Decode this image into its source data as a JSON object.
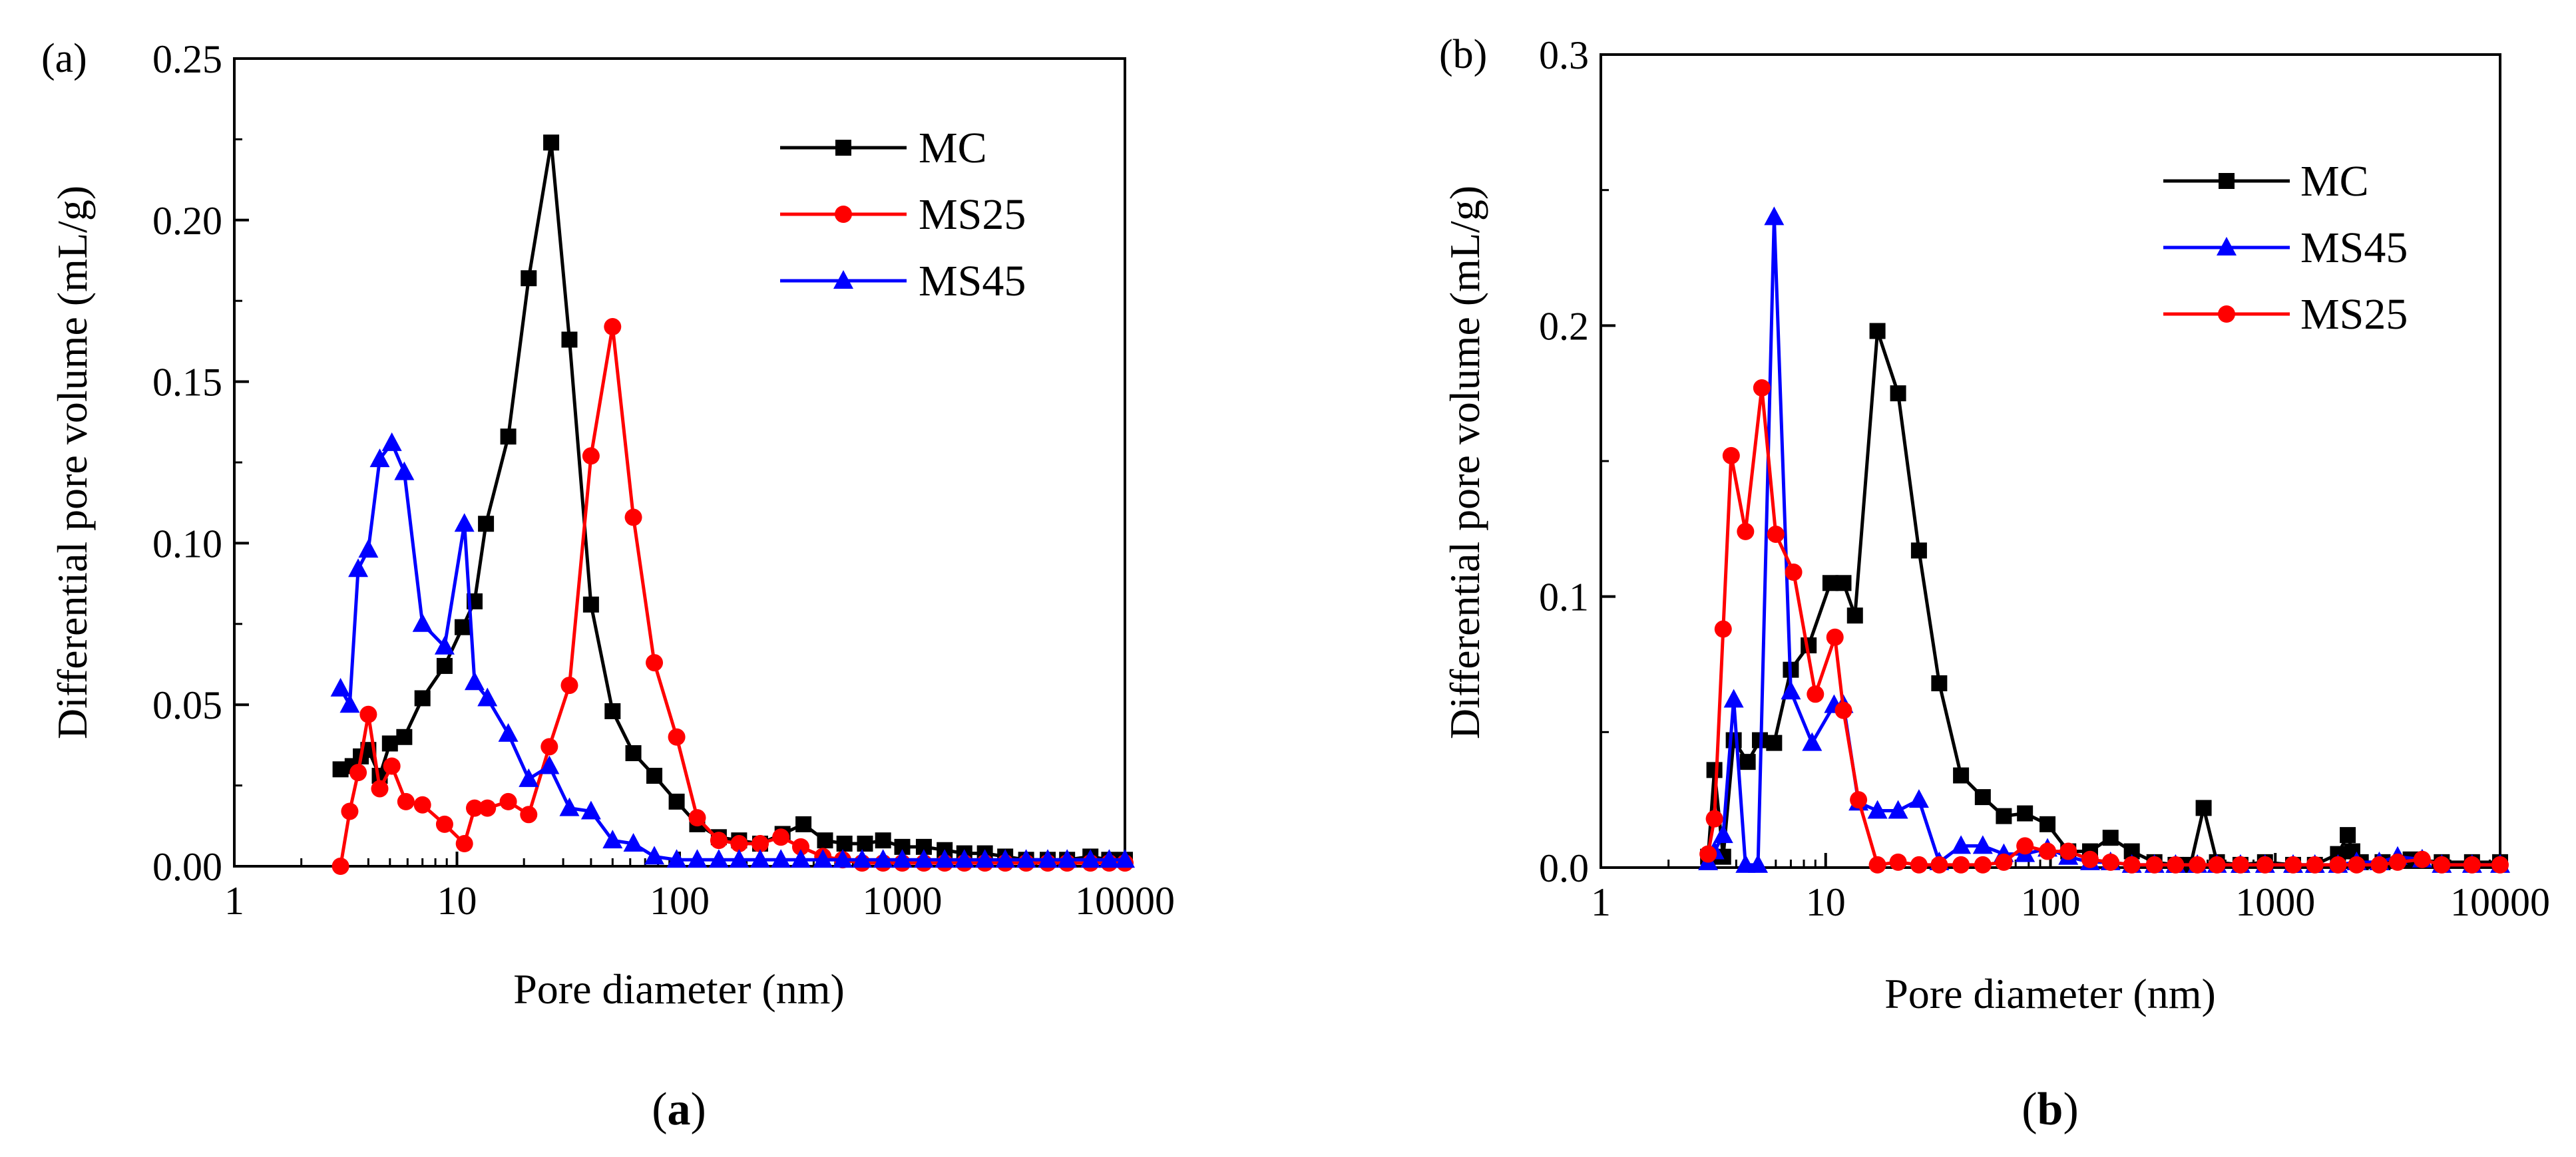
{
  "chart_data": [
    {
      "type": "line",
      "panel_label": "(a)",
      "caption_open": "(",
      "caption_letter": "a",
      "caption_close": ")",
      "xscale": "log",
      "xlim": [
        1,
        10000
      ],
      "ylim": [
        0,
        0.25
      ],
      "xticks": [
        "1",
        "10",
        "100",
        "1000",
        "10000"
      ],
      "yticks": [
        "0.00",
        "0.05",
        "0.10",
        "0.15",
        "0.20",
        "0.25"
      ],
      "xlabel": "Pore diameter (nm)",
      "ylabel": "Differential pore volume (mL/g)",
      "legend_position": "top-right",
      "series": [
        {
          "name": "MC",
          "color": "#000000",
          "marker": "square",
          "x": [
            3,
            3.4,
            3.7,
            4.0,
            4.5,
            5,
            5.8,
            7,
            8.8,
            10.6,
            12,
            13.5,
            17,
            21,
            26.5,
            32,
            40,
            50,
            62,
            77,
            97,
            120,
            150,
            185,
            230,
            290,
            360,
            450,
            550,
            680,
            820,
            1000,
            1250,
            1550,
            1900,
            2350,
            2900,
            3600,
            4500,
            5500,
            7000,
            8500,
            10000
          ],
          "y": [
            0.03,
            0.031,
            0.034,
            0.036,
            0.028,
            0.038,
            0.04,
            0.052,
            0.062,
            0.074,
            0.082,
            0.106,
            0.133,
            0.182,
            0.224,
            0.163,
            0.081,
            0.048,
            0.035,
            0.028,
            0.02,
            0.013,
            0.009,
            0.008,
            0.007,
            0.01,
            0.013,
            0.008,
            0.007,
            0.007,
            0.008,
            0.006,
            0.006,
            0.005,
            0.004,
            0.004,
            0.003,
            0.002,
            0.002,
            0.002,
            0.003,
            0.002,
            0.002
          ]
        },
        {
          "name": "MS25",
          "color": "#ff0000",
          "marker": "circle",
          "x": [
            3,
            3.3,
            3.6,
            4.0,
            4.5,
            5.1,
            5.9,
            7,
            8.8,
            10.8,
            12,
            13.7,
            17,
            21,
            26,
            32,
            40,
            50,
            62,
            77,
            97,
            120,
            150,
            185,
            230,
            285,
            350,
            440,
            540,
            660,
            820,
            1000,
            1250,
            1550,
            1900,
            2350,
            2900,
            3600,
            4500,
            5500,
            7000,
            8500,
            10000
          ],
          "y": [
            0.0,
            0.017,
            0.029,
            0.047,
            0.024,
            0.031,
            0.02,
            0.019,
            0.013,
            0.007,
            0.018,
            0.018,
            0.02,
            0.016,
            0.037,
            0.056,
            0.127,
            0.167,
            0.108,
            0.063,
            0.04,
            0.015,
            0.008,
            0.007,
            0.007,
            0.009,
            0.006,
            0.003,
            0.002,
            0.001,
            0.001,
            0.001,
            0.001,
            0.001,
            0.001,
            0.001,
            0.001,
            0.001,
            0.001,
            0.001,
            0.001,
            0.001,
            0.001
          ]
        },
        {
          "name": "MS45",
          "color": "#0000ff",
          "marker": "triangle",
          "x": [
            3,
            3.3,
            3.6,
            4.0,
            4.5,
            5.1,
            5.8,
            7,
            8.8,
            10.8,
            12,
            13.7,
            17,
            21,
            26,
            32,
            40,
            50,
            62,
            77,
            97,
            120,
            150,
            185,
            230,
            285,
            350,
            440,
            540,
            660,
            820,
            1000,
            1250,
            1550,
            1900,
            2350,
            2900,
            3600,
            4500,
            5500,
            7000,
            8500,
            10000
          ],
          "y": [
            0.055,
            0.05,
            0.092,
            0.098,
            0.126,
            0.131,
            0.122,
            0.075,
            0.068,
            0.106,
            0.057,
            0.052,
            0.041,
            0.027,
            0.031,
            0.018,
            0.017,
            0.008,
            0.007,
            0.003,
            0.002,
            0.002,
            0.002,
            0.002,
            0.002,
            0.002,
            0.002,
            0.002,
            0.002,
            0.002,
            0.002,
            0.002,
            0.002,
            0.002,
            0.002,
            0.002,
            0.002,
            0.002,
            0.002,
            0.002,
            0.002,
            0.002,
            0.002
          ]
        }
      ]
    },
    {
      "type": "line",
      "panel_label": "(b)",
      "caption_open": "(",
      "caption_letter": "b",
      "caption_close": ")",
      "xscale": "log",
      "xlim": [
        1,
        10000
      ],
      "ylim": [
        0,
        0.3
      ],
      "xticks": [
        "1",
        "10",
        "100",
        "1000",
        "10000"
      ],
      "yticks": [
        "0.0",
        "0.1",
        "0.2",
        "0.3"
      ],
      "xlabel": "Pore diameter (nm)",
      "ylabel": "Differential pore volume (mL/g)",
      "legend_position": "top-right",
      "series": [
        {
          "name": "MC",
          "color": "#000000",
          "marker": "square",
          "x": [
            3,
            3.2,
            3.5,
            3.9,
            4.5,
            5.1,
            5.9,
            7,
            8.4,
            10.5,
            12,
            13.5,
            17,
            21,
            26,
            32,
            40,
            50,
            62,
            77,
            97,
            120,
            150,
            185,
            230,
            290,
            360,
            420,
            480,
            550,
            700,
            900,
            1200,
            1500,
            1900,
            2100,
            2200,
            2400,
            3000,
            4000,
            5500,
            7500,
            10000
          ],
          "y": [
            0.004,
            0.036,
            0.004,
            0.047,
            0.039,
            0.047,
            0.046,
            0.073,
            0.082,
            0.105,
            0.105,
            0.093,
            0.198,
            0.175,
            0.117,
            0.068,
            0.034,
            0.026,
            0.019,
            0.02,
            0.016,
            0.006,
            0.006,
            0.011,
            0.006,
            0.002,
            0.001,
            0.001,
            0.022,
            0.002,
            0.001,
            0.002,
            0.001,
            0.001,
            0.005,
            0.012,
            0.006,
            0.002,
            0.002,
            0.003,
            0.002,
            0.002,
            0.002
          ]
        },
        {
          "name": "MS45",
          "color": "#0000ff",
          "marker": "triangle",
          "x": [
            3,
            3.2,
            3.5,
            3.9,
            4.4,
            5,
            5.9,
            7,
            8.7,
            10.9,
            12,
            14,
            17,
            21,
            26,
            32,
            40,
            50,
            62,
            77,
            97,
            120,
            150,
            185,
            230,
            290,
            360,
            450,
            550,
            700,
            900,
            1200,
            1500,
            1900,
            2300,
            2900,
            3500,
            4500,
            5500,
            7500,
            10000
          ],
          "y": [
            0.002,
            0.006,
            0.012,
            0.062,
            0.001,
            0.001,
            0.24,
            0.065,
            0.046,
            0.06,
            0.06,
            0.024,
            0.021,
            0.021,
            0.025,
            0.002,
            0.008,
            0.008,
            0.005,
            0.005,
            0.007,
            0.004,
            0.002,
            0.002,
            0.001,
            0.001,
            0.001,
            0.001,
            0.001,
            0.001,
            0.001,
            0.001,
            0.001,
            0.001,
            0.002,
            0.002,
            0.004,
            0.003,
            0.001,
            0.001,
            0.001
          ]
        },
        {
          "name": "MS25",
          "color": "#ff0000",
          "marker": "circle",
          "x": [
            3,
            3.2,
            3.5,
            3.8,
            4.4,
            5.2,
            6,
            7.2,
            9,
            11,
            12,
            14,
            17,
            21,
            26,
            32,
            40,
            50,
            62,
            77,
            97,
            120,
            150,
            185,
            230,
            290,
            360,
            450,
            550,
            700,
            900,
            1200,
            1500,
            1900,
            2300,
            2900,
            3500,
            4500,
            5500,
            7500,
            10000
          ],
          "y": [
            0.005,
            0.018,
            0.088,
            0.152,
            0.124,
            0.177,
            0.123,
            0.109,
            0.064,
            0.085,
            0.058,
            0.025,
            0.001,
            0.002,
            0.001,
            0.001,
            0.001,
            0.001,
            0.002,
            0.008,
            0.006,
            0.006,
            0.003,
            0.002,
            0.001,
            0.001,
            0.001,
            0.001,
            0.001,
            0.001,
            0.001,
            0.001,
            0.001,
            0.001,
            0.001,
            0.001,
            0.002,
            0.003,
            0.001,
            0.001,
            0.001
          ]
        }
      ]
    }
  ]
}
